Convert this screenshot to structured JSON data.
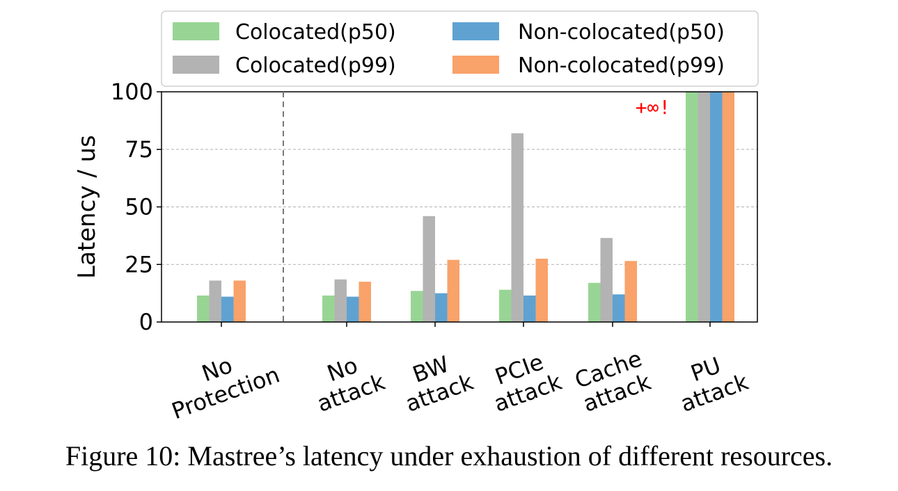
{
  "caption": "Figure 10: Mastree’s latency under exhaustion of different resources.",
  "chart_data": {
    "type": "bar",
    "ylabel": "Latency / us",
    "ylim": [
      0,
      100
    ],
    "yticks": [
      0,
      25,
      50,
      75,
      100
    ],
    "grid": "horizontal dashed",
    "legend_position": "top, above plot",
    "categories": [
      [
        "No",
        "Protection"
      ],
      [
        "No",
        "attack"
      ],
      [
        "BW",
        "attack"
      ],
      [
        "PCIe",
        "attack"
      ],
      [
        "Cache",
        "attack"
      ],
      [
        "PU",
        "attack"
      ]
    ],
    "series": [
      {
        "name": "Colocated(p50)",
        "color": "#98d594",
        "values": [
          11.5,
          11.5,
          13.5,
          14,
          17,
          100
        ]
      },
      {
        "name": "Colocated(p99)",
        "color": "#b3b3b3",
        "values": [
          18,
          18.5,
          46,
          82,
          36.5,
          100
        ]
      },
      {
        "name": "Non-colocated(p50)",
        "color": "#5fa2d2",
        "values": [
          11,
          11,
          12.5,
          11.5,
          12,
          100
        ]
      },
      {
        "name": "Non-colocated(p99)",
        "color": "#f9a26a",
        "values": [
          18,
          17.5,
          27,
          27.5,
          26.5,
          100
        ]
      }
    ],
    "separator_after_category": 0,
    "annotations": [
      {
        "text": "+∞!",
        "category": 5,
        "color": "#ff0000"
      }
    ]
  }
}
